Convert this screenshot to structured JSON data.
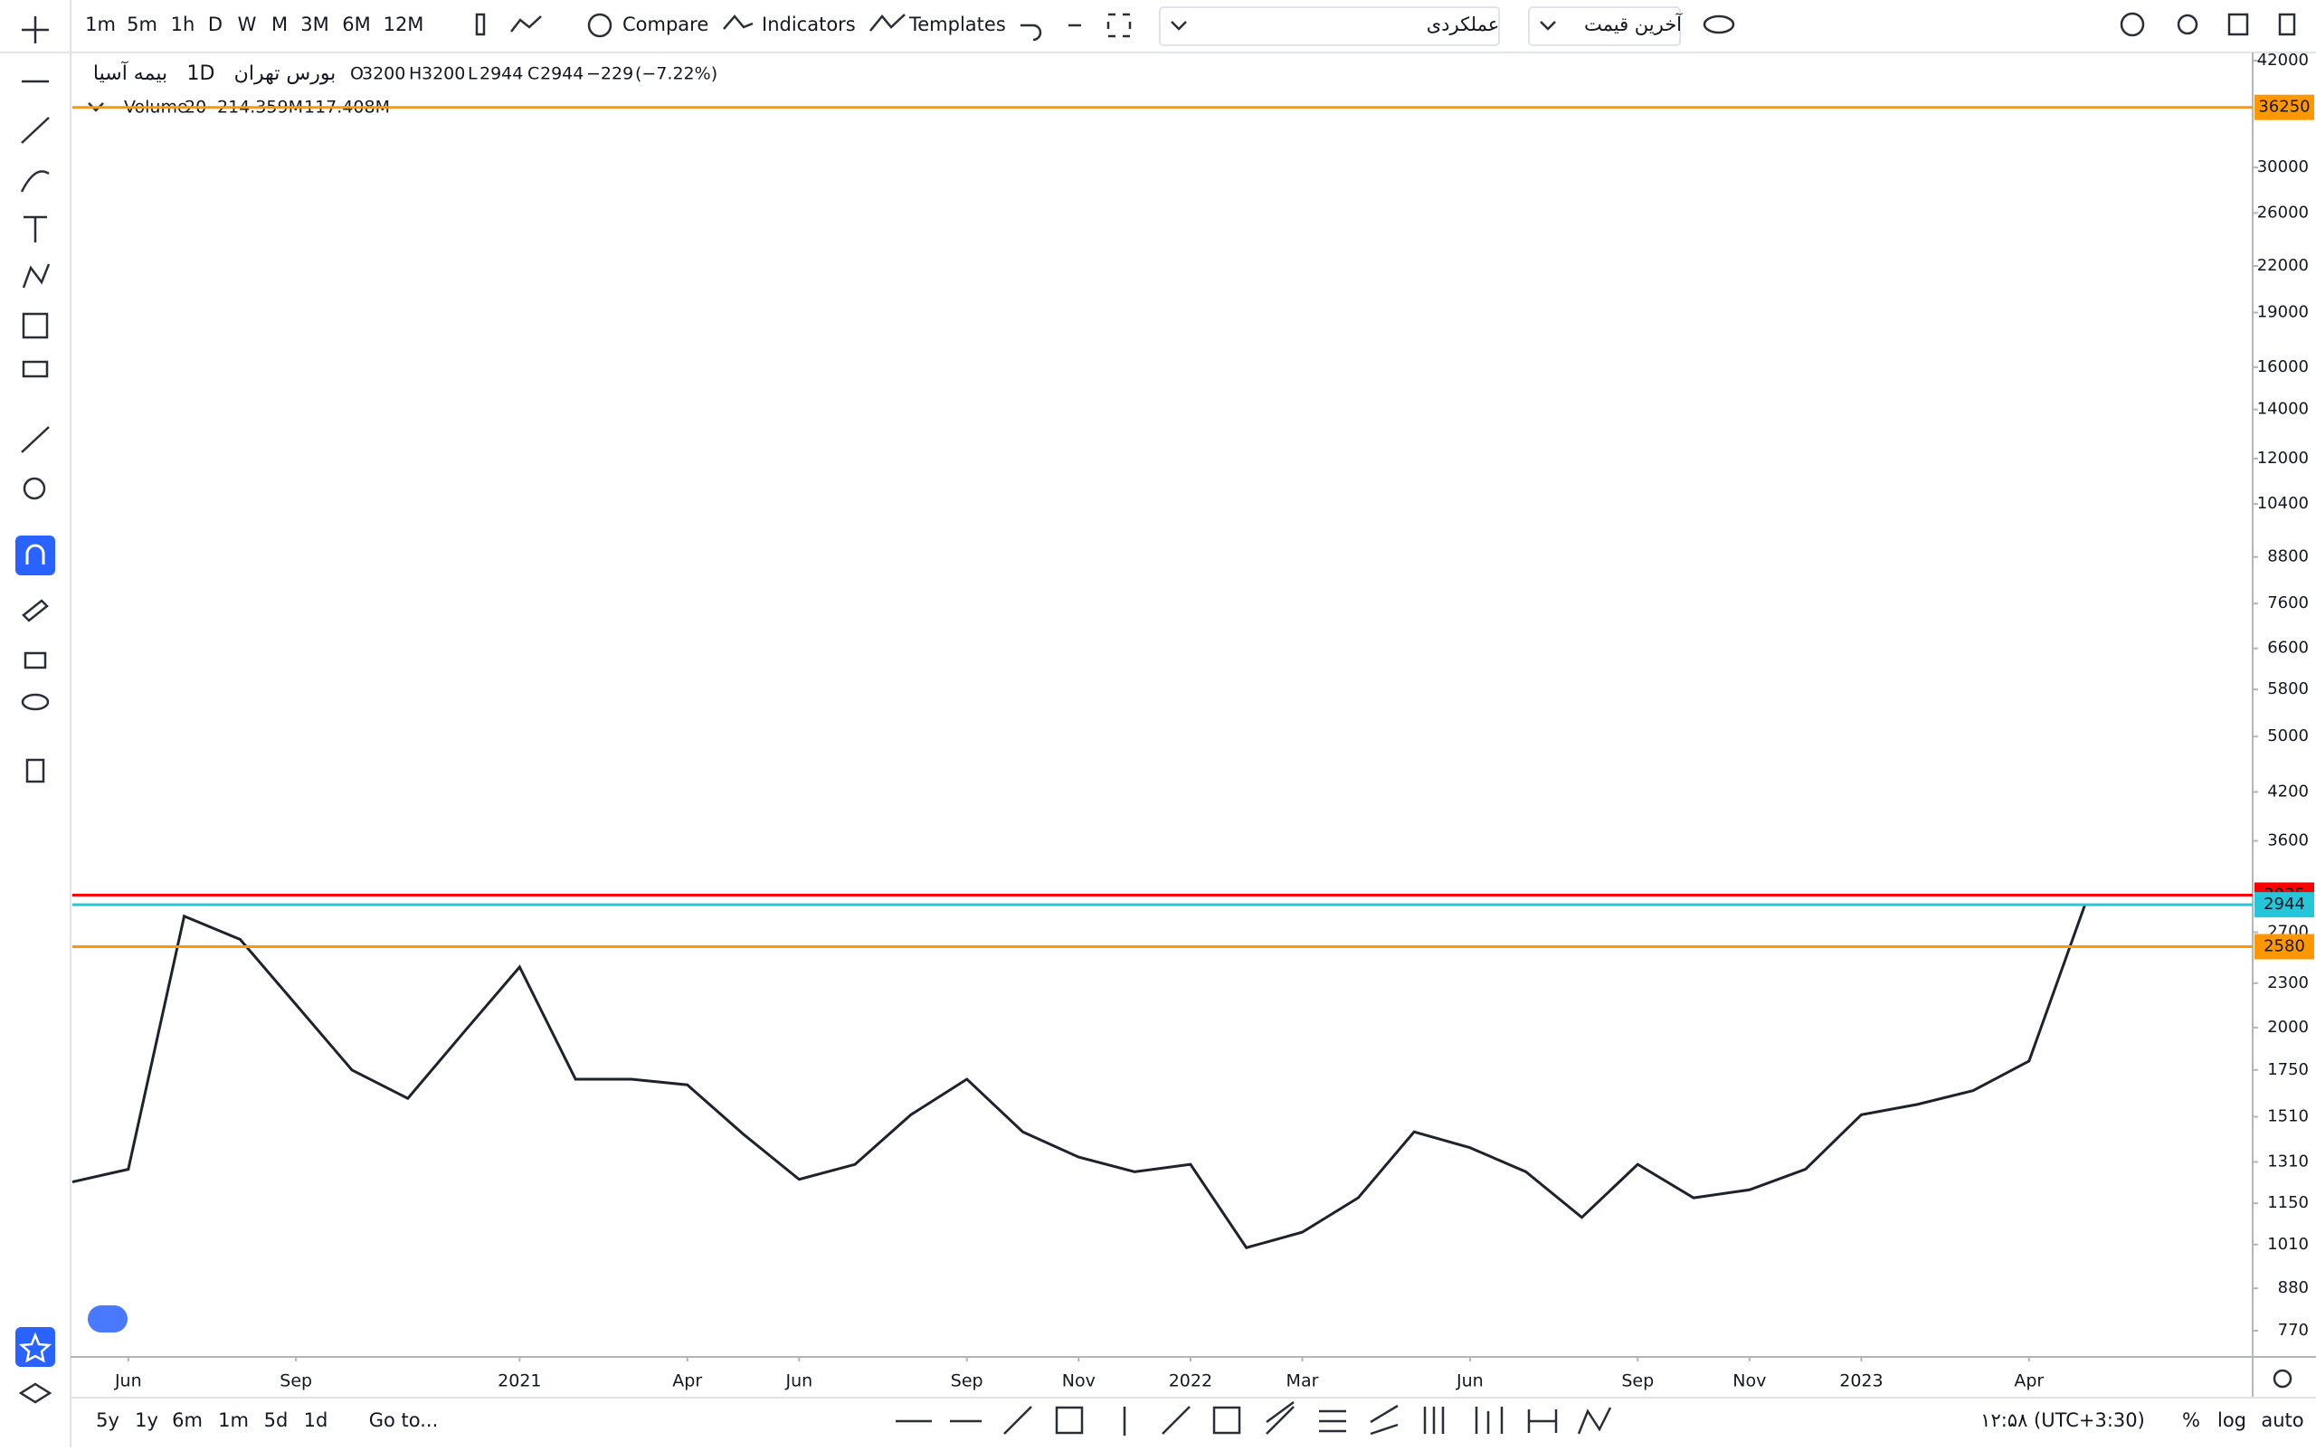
{
  "toolbar": {
    "intervals": [
      "1m",
      "5m",
      "1h",
      "D",
      "W",
      "M",
      "3M",
      "6M",
      "12M"
    ],
    "compare": "Compare",
    "indicators": "Indicators",
    "templates": "Templates",
    "style_select": "عملکردی",
    "price_select": "آخرین قیمت"
  },
  "legend": {
    "interval": "1D",
    "exchange": "بورس تهران",
    "open_key": "O",
    "open": "3200",
    "high_key": "H",
    "high": "3200",
    "low_key": "L",
    "low": "2944",
    "close_key": "C",
    "close": "2944",
    "change": "−229",
    "change_pct": "(−7.22%)"
  },
  "volume_legend": {
    "name": "Volume",
    "length": "20",
    "volume": "214.359M",
    "volume_ma": "117.408M"
  },
  "chart_data": {
    "type": "line",
    "log_scale": true,
    "x": [
      "2020-05",
      "2020-06",
      "2020-07",
      "2020-08",
      "2020-09",
      "2020-10",
      "2020-11",
      "2020-12",
      "2021-01",
      "2021-02",
      "2021-03",
      "2021-04",
      "2021-05",
      "2021-06",
      "2021-07",
      "2021-08",
      "2021-09",
      "2021-10",
      "2021-11",
      "2021-12",
      "2022-01",
      "2022-02",
      "2022-03",
      "2022-04",
      "2022-05",
      "2022-06",
      "2022-07",
      "2022-08",
      "2022-09",
      "2022-10",
      "2022-11",
      "2022-12",
      "2023-01",
      "2023-02",
      "2023-03",
      "2023-04",
      "2023-05"
    ],
    "series": [
      {
        "name": "بیمه آسیا",
        "color": "#1e222d",
        "values": [
          1230,
          1280,
          2840,
          2640,
          2150,
          1750,
          1600,
          1970,
          2420,
          1700,
          1700,
          1670,
          1430,
          1240,
          1300,
          1520,
          1700,
          1440,
          1330,
          1270,
          1300,
          1000,
          1050,
          1170,
          1440,
          1370,
          1270,
          1100,
          1300,
          1170,
          1200,
          1280,
          1520,
          1570,
          1640,
          1800,
          2944
        ]
      }
    ],
    "xlim": [
      "2020-05",
      "2023-08"
    ],
    "xticks": [
      {
        "value": "2020-06",
        "label": "Jun"
      },
      {
        "value": "2020-09",
        "label": "Sep"
      },
      {
        "value": "2021-01",
        "label": "2021"
      },
      {
        "value": "2021-04",
        "label": "Apr"
      },
      {
        "value": "2021-06",
        "label": "Jun"
      },
      {
        "value": "2021-09",
        "label": "Sep"
      },
      {
        "value": "2021-11",
        "label": "Nov"
      },
      {
        "value": "2022-01",
        "label": "2022"
      },
      {
        "value": "2022-03",
        "label": "Mar"
      },
      {
        "value": "2022-06",
        "label": "Jun"
      },
      {
        "value": "2022-09",
        "label": "Sep"
      },
      {
        "value": "2022-11",
        "label": "Nov"
      },
      {
        "value": "2023-01",
        "label": "2023"
      },
      {
        "value": "2023-04",
        "label": "Apr"
      }
    ],
    "ylim": [
      711,
      42970
    ],
    "yticks": [
      770,
      880,
      1010,
      1150,
      1310,
      1510,
      1750,
      2000,
      2300,
      2700,
      3600,
      4200,
      5000,
      5800,
      6600,
      7600,
      8800,
      10400,
      12000,
      14000,
      16000,
      19000,
      22000,
      26000,
      30000,
      42000
    ],
    "levels": [
      {
        "value": 36250,
        "color": "#ff9800"
      },
      {
        "value": 3035,
        "color": "#ff0000"
      },
      {
        "value": 2580,
        "color": "#ff9800"
      },
      {
        "value": 2944,
        "color": "#26c6da"
      }
    ]
  },
  "bottom_bar": {
    "ranges": [
      "5y",
      "1y",
      "6m",
      "1m",
      "5d",
      "1d"
    ],
    "goto": "Go to...",
    "time": "۱۲:۵۸ (UTC+3:30)",
    "percent": "%",
    "log": "log",
    "auto": "auto"
  }
}
